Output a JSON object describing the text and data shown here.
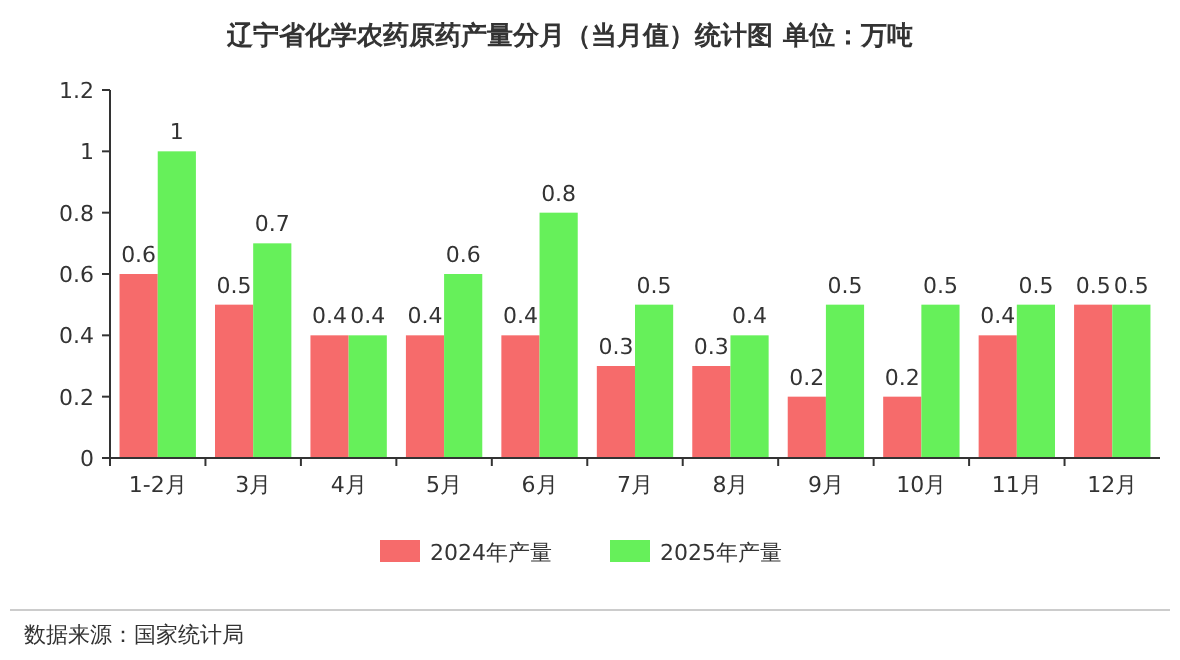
{
  "chart_data": {
    "type": "bar",
    "title": "辽宁省化学农药原药产量分月（当月值）统计图  单位：万吨",
    "categories": [
      "1-2月",
      "3月",
      "4月",
      "5月",
      "6月",
      "7月",
      "8月",
      "9月",
      "10月",
      "11月",
      "12月"
    ],
    "series": [
      {
        "name": "2024年产量",
        "color": "#f66b6b",
        "values": [
          0.6,
          0.5,
          0.4,
          0.4,
          0.4,
          0.3,
          0.3,
          0.2,
          0.2,
          0.4,
          0.5
        ]
      },
      {
        "name": "2025年产量",
        "color": "#66f05a",
        "values": [
          1,
          0.7,
          0.4,
          0.6,
          0.8,
          0.5,
          0.4,
          0.5,
          0.5,
          0.5,
          0.5
        ]
      }
    ],
    "ylim": [
      0,
      1.2
    ],
    "yticks": [
      0,
      0.2,
      0.4,
      0.6,
      0.8,
      1,
      1.2
    ],
    "data_labels": true,
    "legend": "bottom",
    "annotations": [
      "数据来源：国家统计局"
    ]
  }
}
